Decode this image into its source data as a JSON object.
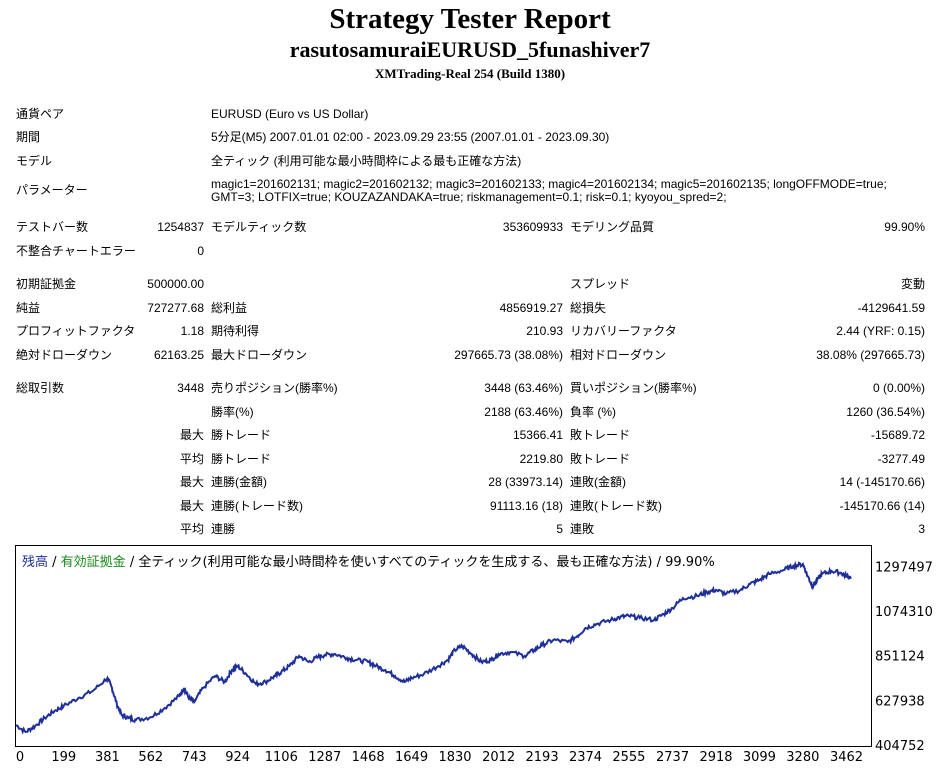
{
  "header": {
    "title": "Strategy Tester Report",
    "subtitle": "rasutosamuraiEURUSD_5funashiver7",
    "build": "XMTrading-Real 254 (Build 1380)"
  },
  "info": {
    "pair_label": "通貨ペア",
    "pair_value": "EURUSD (Euro vs US Dollar)",
    "period_label": "期間",
    "period_value": "5分足(M5) 2007.01.01 02:00 - 2023.09.29 23:55 (2007.01.01 - 2023.09.30)",
    "model_label": "モデル",
    "model_value": "全ティック (利用可能な最小時間枠による最も正確な方法)",
    "params_label": "パラメーター",
    "params_value": "magic1=201602131; magic2=201602132; magic3=201602133; magic4=201602134; magic5=201602135; longOFFMODE=true; GMT=3; LOTFIX=true; KOUZAZANDAKA=true; riskmanagement=0.1; risk=0.1; kyoyou_spred=2;"
  },
  "stats": {
    "bars_label": "テストバー数",
    "bars_value": "1254837",
    "ticks_label": "モデルティック数",
    "ticks_value": "353609933",
    "quality_label": "モデリング品質",
    "quality_value": "99.90%",
    "mismatch_label": "不整合チャートエラー",
    "mismatch_value": "0",
    "deposit_label": "初期証拠金",
    "deposit_value": "500000.00",
    "spread_label": "スプレッド",
    "spread_value": "変動",
    "net_label": "純益",
    "net_value": "727277.68",
    "gross_profit_label": "総利益",
    "gross_profit_value": "4856919.27",
    "gross_loss_label": "総損失",
    "gross_loss_value": "-4129641.59",
    "pf_label": "プロフィットファクタ",
    "pf_value": "1.18",
    "expected_label": "期待利得",
    "expected_value": "210.93",
    "recovery_label": "リカバリーファクタ",
    "recovery_value": "2.44 (YRF: 0.15)",
    "abs_dd_label": "絶対ドローダウン",
    "abs_dd_value": "62163.25",
    "max_dd_label": "最大ドローダウン",
    "max_dd_value": "297665.73 (38.08%)",
    "rel_dd_label": "相対ドローダウン",
    "rel_dd_value": "38.08% (297665.73)",
    "total_trades_label": "総取引数",
    "total_trades_value": "3448",
    "short_label": "売りポジション(勝率%)",
    "short_value": "3448 (63.46%)",
    "long_label": "買いポジション(勝率%)",
    "long_value": "0 (0.00%)",
    "win_rate_label": "勝率(%)",
    "win_rate_value": "2188 (63.46%)",
    "loss_rate_label": "負率 (%)",
    "loss_rate_value": "1260 (36.54%)",
    "max_label": "最大",
    "avg_label": "平均",
    "largest_win_label": "勝トレード",
    "largest_win_value": "15366.41",
    "largest_loss_label": "敗トレード",
    "largest_loss_value": "-15689.72",
    "avg_win_label": "勝トレード",
    "avg_win_value": "2219.80",
    "avg_loss_label": "敗トレード",
    "avg_loss_value": "-3277.49",
    "max_consec_win_label": "連勝(金額)",
    "max_consec_win_value": "28 (33973.14)",
    "max_consec_loss_label": "連敗(金額)",
    "max_consec_loss_value": "14 (-145170.66)",
    "max_consec_profit_label": "連勝(トレード数)",
    "max_consec_profit_value": "91113.16 (18)",
    "max_consec_lossamt_label": "連敗(トレード数)",
    "max_consec_lossamt_value": "-145170.66 (14)",
    "avg_consec_win_label": "連勝",
    "avg_consec_win_value": "5",
    "avg_consec_loss_label": "連敗",
    "avg_consec_loss_value": "3"
  },
  "chart_legend": {
    "balance": "残高",
    "sep1": " / ",
    "equity": "有効証拠金",
    "rest": " / 全ティック(利用可能な最小時間枠を使いすべてのティックを生成する、最も正確な方法) / 99.90%"
  },
  "colors": {
    "balance_line": "#1e2f9a",
    "equity_label": "#1a8a1a"
  },
  "chart_data": {
    "type": "line",
    "title": "",
    "xlabel": "",
    "ylabel": "",
    "x_ticks": [
      "0",
      "199",
      "381",
      "562",
      "743",
      "924",
      "1106",
      "1287",
      "1468",
      "1649",
      "1830",
      "2012",
      "2193",
      "2374",
      "2555",
      "2737",
      "2918",
      "3099",
      "3280",
      "3462"
    ],
    "y_ticks": [
      "1297497",
      "1074310",
      "851124",
      "627938",
      "404752"
    ],
    "xlim": [
      0,
      3560
    ],
    "ylim": [
      404752,
      1400000
    ],
    "series": [
      {
        "x": [
          0,
          40,
          80,
          120,
          160,
          199,
          260,
          320,
          381,
          400,
          420,
          440,
          470,
          500,
          562,
          620,
          680,
          700,
          720,
          743,
          780,
          830,
          870,
          900,
          924,
          960,
          1000,
          1040,
          1080,
          1106,
          1140,
          1180,
          1220,
          1260,
          1287,
          1330,
          1380,
          1420,
          1468,
          1500,
          1540,
          1580,
          1620,
          1649,
          1700,
          1760,
          1800,
          1830,
          1860,
          1900,
          1940,
          1980,
          2012,
          2060,
          2120,
          2160,
          2193,
          2240,
          2300,
          2340,
          2374,
          2420,
          2480,
          2520,
          2555,
          2600,
          2660,
          2700,
          2737,
          2780,
          2840,
          2880,
          2918,
          2960,
          3020,
          3060,
          3099,
          3140,
          3200,
          3240,
          3280,
          3300,
          3320,
          3340,
          3360,
          3400,
          3440,
          3462,
          3480
        ],
        "values": [
          505000,
          470000,
          500000,
          540000,
          575000,
          600000,
          640000,
          675000,
          740000,
          690000,
          610000,
          555000,
          540000,
          530000,
          545000,
          590000,
          650000,
          690000,
          640000,
          620000,
          690000,
          750000,
          720000,
          780000,
          800000,
          760000,
          710000,
          720000,
          750000,
          770000,
          800000,
          850000,
          820000,
          845000,
          855000,
          860000,
          840000,
          830000,
          820000,
          800000,
          780000,
          750000,
          720000,
          740000,
          760000,
          800000,
          830000,
          880000,
          900000,
          860000,
          820000,
          830000,
          860000,
          870000,
          850000,
          880000,
          905000,
          930000,
          920000,
          950000,
          990000,
          1010000,
          1030000,
          1045000,
          1050000,
          1040000,
          1030000,
          1060000,
          1090000,
          1140000,
          1150000,
          1170000,
          1180000,
          1160000,
          1180000,
          1210000,
          1230000,
          1260000,
          1280000,
          1300000,
          1310000,
          1250000,
          1200000,
          1230000,
          1260000,
          1275000,
          1265000,
          1250000,
          1245000
        ]
      }
    ]
  }
}
